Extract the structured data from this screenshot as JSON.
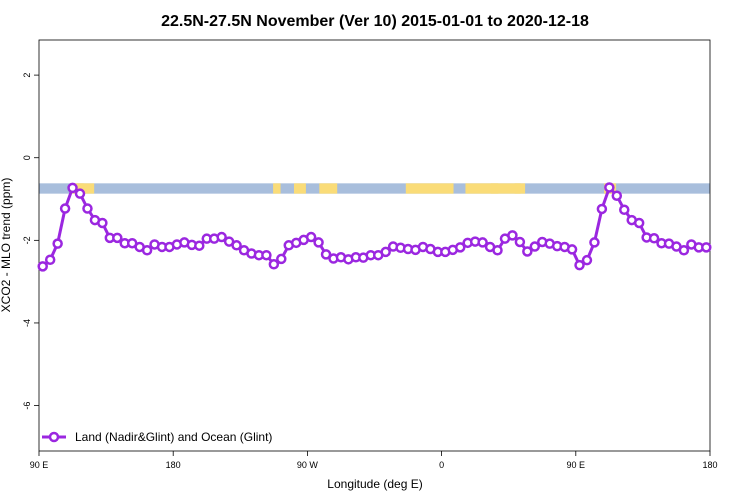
{
  "chart_data": {
    "type": "line",
    "title": "22.5N-27.5N November (Ver 10)   2015-01-01 to 2020-12-18",
    "xlabel": "Longitude (deg E)",
    "ylabel": "XCO2 - MLO trend (ppm)",
    "xlim": [
      90,
      540
    ],
    "ylim": [
      -7.1,
      2.85
    ],
    "x_ticks": [
      {
        "value": 90,
        "label": "90 E"
      },
      {
        "value": 180,
        "label": "180"
      },
      {
        "value": 270,
        "label": "90 W"
      },
      {
        "value": 360,
        "label": "0"
      },
      {
        "value": 450,
        "label": "90 E"
      },
      {
        "value": 540,
        "label": "180"
      }
    ],
    "y_ticks": [
      {
        "value": 2,
        "label": "2"
      },
      {
        "value": 0,
        "label": "0"
      },
      {
        "value": -2,
        "label": "-2"
      },
      {
        "value": -4,
        "label": "-4"
      },
      {
        "value": -6,
        "label": "-6"
      }
    ],
    "land_ocean_band": {
      "ymin": -0.87,
      "ymax": -0.62,
      "ocean_color": "#a8bedc",
      "land_color": "#fadc78",
      "land_segments": [
        [
          112,
          120
        ],
        [
          115,
          127
        ],
        [
          247,
          252
        ],
        [
          261,
          269
        ],
        [
          278,
          290
        ],
        [
          336,
          368
        ],
        [
          376,
          398
        ],
        [
          393,
          413
        ],
        [
          409,
          416
        ],
        [
          469,
          477
        ],
        [
          473,
          475
        ]
      ]
    },
    "series": [
      {
        "name": "Land (Nadir&Glint) and Ocean (Glint)",
        "color": "#9b27e0",
        "x": [
          92.5,
          97.5,
          102.5,
          107.5,
          112.5,
          117.5,
          122.5,
          127.5,
          132.5,
          137.5,
          142.5,
          147.5,
          152.5,
          157.5,
          162.5,
          167.5,
          172.5,
          177.5,
          182.5,
          187.5,
          192.5,
          197.5,
          202.5,
          207.5,
          212.5,
          217.5,
          222.5,
          227.5,
          232.5,
          237.5,
          242.5,
          247.5,
          252.5,
          257.5,
          262.5,
          267.5,
          272.5,
          277.5,
          282.5,
          287.5,
          292.5,
          297.5,
          302.5,
          307.5,
          312.5,
          317.5,
          322.5,
          327.5,
          332.5,
          337.5,
          342.5,
          347.5,
          352.5,
          357.5,
          362.5,
          367.5,
          372.5,
          377.5,
          382.5,
          387.5,
          392.5,
          397.5,
          402.5,
          407.5,
          412.5,
          417.5,
          422.5,
          427.5,
          432.5,
          437.5,
          442.5,
          447.5,
          452.5,
          457.5,
          462.5,
          467.5,
          472.5,
          477.5,
          482.5,
          487.5,
          492.5,
          497.5,
          502.5,
          507.5,
          512.5,
          517.5,
          522.5,
          527.5,
          532.5,
          537.5
        ],
        "values": [
          -2.63,
          -2.47,
          -2.08,
          -1.23,
          -0.73,
          -0.87,
          -1.23,
          -1.51,
          -1.58,
          -1.94,
          -1.94,
          -2.07,
          -2.07,
          -2.16,
          -2.24,
          -2.1,
          -2.16,
          -2.16,
          -2.1,
          -2.05,
          -2.11,
          -2.13,
          -1.96,
          -1.96,
          -1.92,
          -2.03,
          -2.12,
          -2.24,
          -2.32,
          -2.36,
          -2.36,
          -2.58,
          -2.45,
          -2.12,
          -2.06,
          -1.99,
          -1.92,
          -2.05,
          -2.34,
          -2.44,
          -2.41,
          -2.46,
          -2.41,
          -2.42,
          -2.36,
          -2.36,
          -2.28,
          -2.15,
          -2.18,
          -2.21,
          -2.23,
          -2.16,
          -2.21,
          -2.28,
          -2.28,
          -2.23,
          -2.17,
          -2.06,
          -2.03,
          -2.05,
          -2.16,
          -2.24,
          -1.96,
          -1.88,
          -2.04,
          -2.27,
          -2.15,
          -2.04,
          -2.08,
          -2.14,
          -2.16,
          -2.22,
          -2.6,
          -2.48,
          -2.05,
          -1.24,
          -0.72,
          -0.92,
          -1.26,
          -1.51,
          -1.58,
          -1.93,
          -1.95,
          -2.07,
          -2.08,
          -2.15,
          -2.24,
          -2.1,
          -2.17,
          -2.17
        ]
      }
    ],
    "legend": {
      "position": "bottom-left"
    },
    "grid": false
  }
}
